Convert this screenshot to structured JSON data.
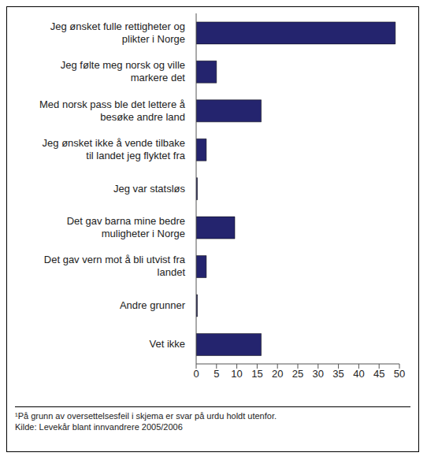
{
  "chart_data": {
    "type": "bar",
    "orientation": "horizontal",
    "categories": [
      "Jeg ønsket fulle rettigheter og plikter i Norge",
      "Jeg følte meg norsk og ville markere det",
      "Med norsk pass ble det lettere å besøke andre land",
      "Jeg ønsket ikke å vende tilbake til landet jeg flyktet fra",
      "Jeg var statsløs",
      "Det gav barna mine bedre muligheter i Norge",
      "Det gav vern mot å bli utvist fra landet",
      "Andre grunner",
      "Vet ikke"
    ],
    "values": [
      49,
      5,
      16,
      2.5,
      0.3,
      9.5,
      2.5,
      0.3,
      16
    ],
    "color": "#24246e",
    "xlim": [
      0,
      50
    ],
    "xticks": [
      0,
      5,
      10,
      15,
      20,
      25,
      30,
      35,
      40,
      45,
      50
    ],
    "grid": false,
    "annotations": [
      "¹På grunn av oversettelsesfeil i skjema er svar på urdu holdt utenfor.",
      "Kilde: Levekår blant innvandrere 2005/2006"
    ]
  }
}
